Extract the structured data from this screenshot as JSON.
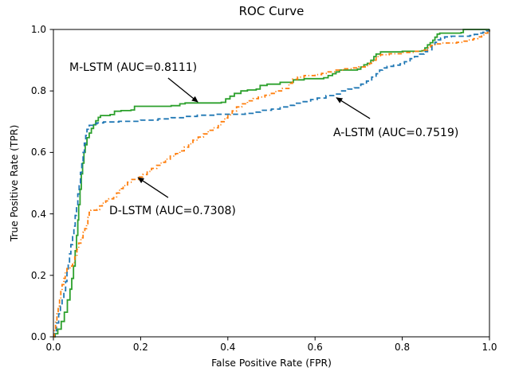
{
  "chart_data": {
    "type": "line",
    "title": "ROC Curve",
    "xlabel": "False Positive Rate (FPR)",
    "ylabel": "True Positive Rate (TPR)",
    "xlim": [
      0.0,
      1.0
    ],
    "ylim": [
      0.0,
      1.0
    ],
    "grid": false,
    "legend_position": "none",
    "x_ticks": {
      "values": [
        0.0,
        0.2,
        0.4,
        0.6,
        0.8,
        1.0
      ],
      "labels": [
        "0.0",
        "0.2",
        "0.4",
        "0.6",
        "0.8",
        "1.0"
      ]
    },
    "y_ticks": {
      "values": [
        0.0,
        0.2,
        0.4,
        0.6,
        0.8,
        1.0
      ],
      "labels": [
        "0.0",
        "0.2",
        "0.4",
        "0.6",
        "0.8",
        "1.0"
      ]
    },
    "series": [
      {
        "id": "m-lstm",
        "name": "M-LSTM",
        "auc": 0.8111,
        "color": "#2ca02c",
        "line_style": "solid",
        "points": [
          [
            0,
            0
          ],
          [
            0.004,
            0.01
          ],
          [
            0.01,
            0.025
          ],
          [
            0.018,
            0.05
          ],
          [
            0.025,
            0.08
          ],
          [
            0.032,
            0.12
          ],
          [
            0.038,
            0.155
          ],
          [
            0.042,
            0.19
          ],
          [
            0.046,
            0.23
          ],
          [
            0.05,
            0.28
          ],
          [
            0.053,
            0.33
          ],
          [
            0.056,
            0.38
          ],
          [
            0.058,
            0.43
          ],
          [
            0.061,
            0.48
          ],
          [
            0.064,
            0.53
          ],
          [
            0.067,
            0.565
          ],
          [
            0.07,
            0.6
          ],
          [
            0.073,
            0.625
          ],
          [
            0.077,
            0.648
          ],
          [
            0.082,
            0.663
          ],
          [
            0.087,
            0.678
          ],
          [
            0.092,
            0.69
          ],
          [
            0.097,
            0.703
          ],
          [
            0.103,
            0.714
          ],
          [
            0.108,
            0.72
          ],
          [
            0.13,
            0.723
          ],
          [
            0.14,
            0.734
          ],
          [
            0.155,
            0.736
          ],
          [
            0.178,
            0.738
          ],
          [
            0.186,
            0.75
          ],
          [
            0.27,
            0.752
          ],
          [
            0.29,
            0.758
          ],
          [
            0.302,
            0.761
          ],
          [
            0.385,
            0.763
          ],
          [
            0.395,
            0.774
          ],
          [
            0.405,
            0.783
          ],
          [
            0.415,
            0.792
          ],
          [
            0.43,
            0.8
          ],
          [
            0.445,
            0.803
          ],
          [
            0.465,
            0.806
          ],
          [
            0.474,
            0.818
          ],
          [
            0.49,
            0.822
          ],
          [
            0.52,
            0.828
          ],
          [
            0.55,
            0.836
          ],
          [
            0.575,
            0.84
          ],
          [
            0.62,
            0.843
          ],
          [
            0.63,
            0.85
          ],
          [
            0.64,
            0.856
          ],
          [
            0.648,
            0.862
          ],
          [
            0.656,
            0.868
          ],
          [
            0.697,
            0.871
          ],
          [
            0.705,
            0.878
          ],
          [
            0.712,
            0.885
          ],
          [
            0.72,
            0.89
          ],
          [
            0.728,
            0.9
          ],
          [
            0.735,
            0.912
          ],
          [
            0.74,
            0.92
          ],
          [
            0.75,
            0.927
          ],
          [
            0.8,
            0.929
          ],
          [
            0.845,
            0.931
          ],
          [
            0.852,
            0.94
          ],
          [
            0.858,
            0.95
          ],
          [
            0.864,
            0.957
          ],
          [
            0.87,
            0.965
          ],
          [
            0.875,
            0.975
          ],
          [
            0.88,
            0.985
          ],
          [
            0.886,
            0.988
          ],
          [
            0.935,
            0.99
          ],
          [
            0.94,
            1
          ],
          [
            1,
            1
          ]
        ]
      },
      {
        "id": "a-lstm",
        "name": "A-LSTM",
        "auc": 0.7519,
        "color": "#1f77b4",
        "line_style": "dashed",
        "points": [
          [
            0,
            0
          ],
          [
            0.003,
            0.02
          ],
          [
            0.007,
            0.045
          ],
          [
            0.012,
            0.075
          ],
          [
            0.016,
            0.1
          ],
          [
            0.02,
            0.125
          ],
          [
            0.024,
            0.15
          ],
          [
            0.028,
            0.18
          ],
          [
            0.031,
            0.21
          ],
          [
            0.034,
            0.24
          ],
          [
            0.037,
            0.27
          ],
          [
            0.04,
            0.3
          ],
          [
            0.044,
            0.33
          ],
          [
            0.047,
            0.36
          ],
          [
            0.05,
            0.395
          ],
          [
            0.053,
            0.43
          ],
          [
            0.056,
            0.465
          ],
          [
            0.059,
            0.5
          ],
          [
            0.062,
            0.535
          ],
          [
            0.065,
            0.57
          ],
          [
            0.068,
            0.6
          ],
          [
            0.071,
            0.63
          ],
          [
            0.074,
            0.655
          ],
          [
            0.077,
            0.675
          ],
          [
            0.082,
            0.688
          ],
          [
            0.09,
            0.693
          ],
          [
            0.1,
            0.696
          ],
          [
            0.115,
            0.699
          ],
          [
            0.15,
            0.701
          ],
          [
            0.2,
            0.705
          ],
          [
            0.24,
            0.709
          ],
          [
            0.27,
            0.713
          ],
          [
            0.3,
            0.717
          ],
          [
            0.33,
            0.721
          ],
          [
            0.37,
            0.724
          ],
          [
            0.44,
            0.727
          ],
          [
            0.46,
            0.731
          ],
          [
            0.475,
            0.737
          ],
          [
            0.5,
            0.741
          ],
          [
            0.52,
            0.748
          ],
          [
            0.54,
            0.753
          ],
          [
            0.553,
            0.76
          ],
          [
            0.57,
            0.765
          ],
          [
            0.59,
            0.772
          ],
          [
            0.605,
            0.777
          ],
          [
            0.625,
            0.785
          ],
          [
            0.645,
            0.79
          ],
          [
            0.658,
            0.8
          ],
          [
            0.675,
            0.806
          ],
          [
            0.69,
            0.81
          ],
          [
            0.705,
            0.822
          ],
          [
            0.718,
            0.832
          ],
          [
            0.73,
            0.845
          ],
          [
            0.74,
            0.856
          ],
          [
            0.748,
            0.868
          ],
          [
            0.755,
            0.875
          ],
          [
            0.765,
            0.88
          ],
          [
            0.78,
            0.884
          ],
          [
            0.795,
            0.888
          ],
          [
            0.805,
            0.895
          ],
          [
            0.818,
            0.905
          ],
          [
            0.828,
            0.912
          ],
          [
            0.84,
            0.92
          ],
          [
            0.85,
            0.928
          ],
          [
            0.858,
            0.934
          ],
          [
            0.868,
            0.948
          ],
          [
            0.875,
            0.958
          ],
          [
            0.882,
            0.966
          ],
          [
            0.888,
            0.972
          ],
          [
            0.897,
            0.976
          ],
          [
            0.912,
            0.978
          ],
          [
            0.955,
            0.98
          ],
          [
            0.965,
            0.984
          ],
          [
            0.975,
            0.988
          ],
          [
            0.985,
            0.991
          ],
          [
            0.993,
            0.995
          ],
          [
            1,
            1
          ]
        ]
      },
      {
        "id": "d-lstm",
        "name": "D-LSTM",
        "auc": 0.7308,
        "color": "#ff7f0e",
        "line_style": "dashdot",
        "points": [
          [
            0,
            0
          ],
          [
            0.002,
            0.02
          ],
          [
            0.005,
            0.05
          ],
          [
            0.008,
            0.075
          ],
          [
            0.011,
            0.1
          ],
          [
            0.014,
            0.125
          ],
          [
            0.017,
            0.15
          ],
          [
            0.02,
            0.17
          ],
          [
            0.024,
            0.19
          ],
          [
            0.027,
            0.21
          ],
          [
            0.031,
            0.222
          ],
          [
            0.038,
            0.23
          ],
          [
            0.044,
            0.242
          ],
          [
            0.049,
            0.26
          ],
          [
            0.054,
            0.285
          ],
          [
            0.058,
            0.305
          ],
          [
            0.063,
            0.322
          ],
          [
            0.068,
            0.34
          ],
          [
            0.072,
            0.352
          ],
          [
            0.076,
            0.368
          ],
          [
            0.079,
            0.388
          ],
          [
            0.082,
            0.405
          ],
          [
            0.086,
            0.412
          ],
          [
            0.1,
            0.414
          ],
          [
            0.106,
            0.426
          ],
          [
            0.112,
            0.435
          ],
          [
            0.12,
            0.442
          ],
          [
            0.127,
            0.449
          ],
          [
            0.138,
            0.453
          ],
          [
            0.145,
            0.468
          ],
          [
            0.152,
            0.482
          ],
          [
            0.16,
            0.492
          ],
          [
            0.17,
            0.503
          ],
          [
            0.18,
            0.512
          ],
          [
            0.195,
            0.52
          ],
          [
            0.205,
            0.528
          ],
          [
            0.215,
            0.538
          ],
          [
            0.225,
            0.548
          ],
          [
            0.237,
            0.558
          ],
          [
            0.247,
            0.568
          ],
          [
            0.257,
            0.578
          ],
          [
            0.268,
            0.588
          ],
          [
            0.28,
            0.596
          ],
          [
            0.29,
            0.605
          ],
          [
            0.3,
            0.617
          ],
          [
            0.31,
            0.628
          ],
          [
            0.32,
            0.64
          ],
          [
            0.332,
            0.65
          ],
          [
            0.344,
            0.66
          ],
          [
            0.355,
            0.672
          ],
          [
            0.366,
            0.68
          ],
          [
            0.378,
            0.69
          ],
          [
            0.385,
            0.7
          ],
          [
            0.393,
            0.712
          ],
          [
            0.4,
            0.722
          ],
          [
            0.41,
            0.735
          ],
          [
            0.42,
            0.748
          ],
          [
            0.432,
            0.758
          ],
          [
            0.445,
            0.768
          ],
          [
            0.458,
            0.775
          ],
          [
            0.47,
            0.78
          ],
          [
            0.485,
            0.786
          ],
          [
            0.5,
            0.792
          ],
          [
            0.51,
            0.8
          ],
          [
            0.525,
            0.808
          ],
          [
            0.54,
            0.825
          ],
          [
            0.548,
            0.838
          ],
          [
            0.56,
            0.845
          ],
          [
            0.575,
            0.85
          ],
          [
            0.6,
            0.853
          ],
          [
            0.615,
            0.857
          ],
          [
            0.63,
            0.862
          ],
          [
            0.648,
            0.868
          ],
          [
            0.665,
            0.872
          ],
          [
            0.685,
            0.875
          ],
          [
            0.7,
            0.878
          ],
          [
            0.715,
            0.882
          ],
          [
            0.725,
            0.89
          ],
          [
            0.733,
            0.9
          ],
          [
            0.74,
            0.912
          ],
          [
            0.75,
            0.918
          ],
          [
            0.77,
            0.921
          ],
          [
            0.8,
            0.925
          ],
          [
            0.83,
            0.929
          ],
          [
            0.85,
            0.933
          ],
          [
            0.858,
            0.94
          ],
          [
            0.865,
            0.948
          ],
          [
            0.875,
            0.953
          ],
          [
            0.89,
            0.956
          ],
          [
            0.925,
            0.958
          ],
          [
            0.94,
            0.962
          ],
          [
            0.952,
            0.966
          ],
          [
            0.963,
            0.97
          ],
          [
            0.973,
            0.976
          ],
          [
            0.982,
            0.982
          ],
          [
            0.99,
            0.988
          ],
          [
            0.996,
            0.994
          ],
          [
            1,
            1
          ]
        ]
      }
    ],
    "annotations": [
      {
        "label": "M-LSTM (AUC=0.8111)",
        "text_xy": [
          0.037,
          0.896
        ],
        "arrow_tail_xy": [
          0.263,
          0.842
        ],
        "arrow_tip_xy": [
          0.331,
          0.764
        ]
      },
      {
        "label": "A-LSTM (AUC=0.7519)",
        "text_xy": [
          0.642,
          0.684
        ],
        "arrow_tail_xy": [
          0.726,
          0.71
        ],
        "arrow_tip_xy": [
          0.649,
          0.778
        ]
      },
      {
        "label": "D-LSTM (AUC=0.7308)",
        "text_xy": [
          0.128,
          0.43
        ],
        "arrow_tail_xy": [
          0.263,
          0.453
        ],
        "arrow_tip_xy": [
          0.194,
          0.518
        ]
      }
    ],
    "colors": {
      "axes_border": "#000000",
      "text": "#000000",
      "background": "#ffffff"
    }
  }
}
